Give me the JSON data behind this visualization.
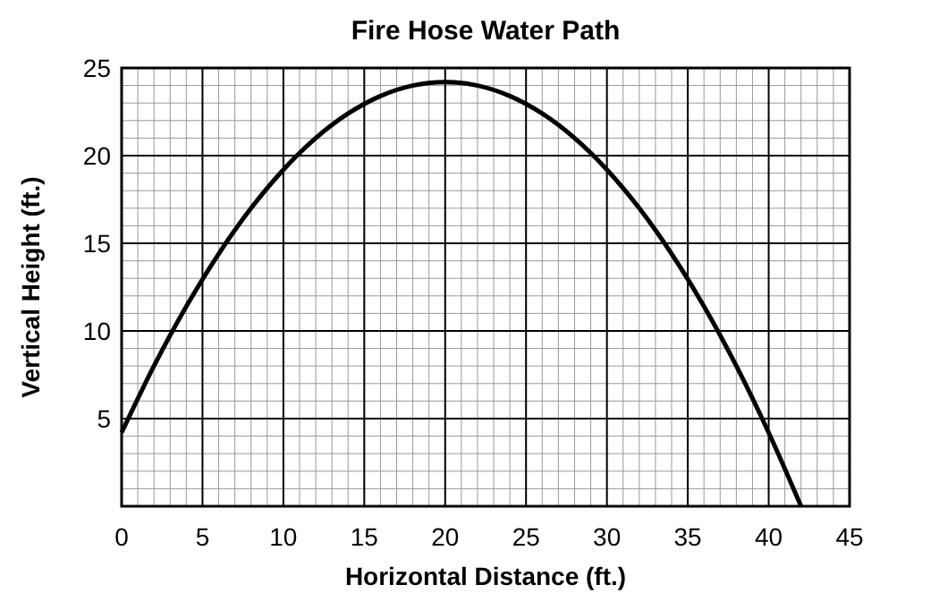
{
  "chart_data": {
    "type": "line",
    "title": "Fire Hose Water Path",
    "xlabel": "Horizontal Distance (ft.)",
    "ylabel": "Vertical Height (ft.)",
    "x": [
      0,
      2,
      4,
      6,
      8,
      10,
      12,
      14,
      16,
      18,
      20,
      22,
      24,
      26,
      28,
      30,
      32,
      34,
      36,
      38,
      40,
      42
    ],
    "series": [
      {
        "color": "#000000",
        "values": [
          4.2,
          8,
          11.4,
          14.4,
          17,
          19.2,
          21,
          22.4,
          23.4,
          24,
          24.2,
          24,
          23.4,
          22.4,
          21,
          19.2,
          17,
          14.4,
          11.4,
          8,
          4.2,
          0
        ]
      }
    ],
    "xlim": [
      0,
      45
    ],
    "xticks": [
      0,
      5,
      10,
      15,
      20,
      25,
      30,
      35,
      40,
      45
    ],
    "ylim": [
      0,
      25
    ],
    "yticks": [
      5,
      10,
      15,
      20,
      25
    ],
    "grid": true,
    "marker": "none",
    "line_style": "solid"
  }
}
